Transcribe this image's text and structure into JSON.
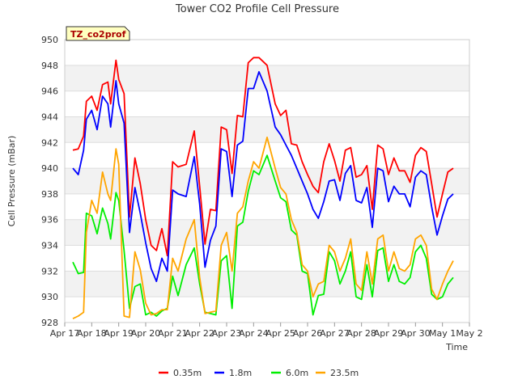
{
  "chart_data": {
    "type": "line",
    "title": "Tower CO2 Profile Cell Pressure",
    "site_tag": "TZ_co2prof",
    "xlabel": "Time",
    "ylabel": "Cell Pressure (mBar)",
    "ylim": [
      928,
      950
    ],
    "xlim": [
      0,
      15
    ],
    "y_ticks": [
      928,
      930,
      932,
      934,
      936,
      938,
      940,
      942,
      944,
      946,
      948,
      950
    ],
    "x_ticks": [
      {
        "x": 0,
        "label": "Apr 17"
      },
      {
        "x": 1,
        "label": "Apr 18"
      },
      {
        "x": 2,
        "label": "Apr 19"
      },
      {
        "x": 3,
        "label": "Apr 20"
      },
      {
        "x": 4,
        "label": "Apr 21"
      },
      {
        "x": 5,
        "label": "Apr 22"
      },
      {
        "x": 6,
        "label": "Apr 23"
      },
      {
        "x": 7,
        "label": "Apr 24"
      },
      {
        "x": 8,
        "label": "Apr 25"
      },
      {
        "x": 9,
        "label": "Apr 26"
      },
      {
        "x": 10,
        "label": "Apr 27"
      },
      {
        "x": 11,
        "label": "Apr 28"
      },
      {
        "x": 12,
        "label": "Apr 29"
      },
      {
        "x": 13,
        "label": "Apr 30"
      },
      {
        "x": 14,
        "label": "May 1"
      },
      {
        "x": 15,
        "label": "May 2"
      }
    ],
    "grid": "horizontal-bands",
    "legend_position": "bottom",
    "series": [
      {
        "name": "0.35m",
        "color": "#ff0000",
        "x": [
          0.3,
          0.5,
          0.7,
          0.8,
          1.0,
          1.2,
          1.4,
          1.6,
          1.7,
          1.9,
          2.0,
          2.2,
          2.4,
          2.6,
          2.8,
          3.0,
          3.2,
          3.4,
          3.6,
          3.8,
          4.0,
          4.2,
          4.5,
          4.8,
          5.0,
          5.2,
          5.4,
          5.6,
          5.8,
          6.0,
          6.2,
          6.4,
          6.6,
          6.8,
          7.0,
          7.2,
          7.5,
          7.8,
          8.0,
          8.2,
          8.4,
          8.6,
          8.8,
          9.0,
          9.2,
          9.4,
          9.6,
          9.8,
          10.0,
          10.2,
          10.4,
          10.6,
          10.8,
          11.0,
          11.2,
          11.4,
          11.6,
          11.8,
          12.0,
          12.2,
          12.4,
          12.6,
          12.8,
          13.0,
          13.2,
          13.4,
          13.6,
          13.8,
          14.0,
          14.2,
          14.4
        ],
        "y": [
          941.4,
          941.5,
          942.5,
          945.2,
          945.6,
          944.5,
          946.5,
          946.7,
          945.0,
          948.4,
          946.9,
          945.8,
          936.2,
          940.8,
          938.8,
          936.0,
          934.0,
          933.6,
          935.3,
          933.2,
          940.5,
          940.1,
          940.3,
          942.9,
          938.6,
          934.1,
          936.8,
          936.7,
          943.2,
          943.0,
          939.6,
          944.1,
          944.0,
          948.2,
          948.6,
          948.6,
          948.0,
          945.0,
          944.1,
          944.5,
          941.9,
          941.8,
          940.5,
          939.5,
          938.6,
          938.1,
          940.5,
          941.9,
          940.6,
          939.0,
          941.4,
          941.6,
          939.3,
          939.5,
          940.2,
          936.8,
          941.8,
          941.5,
          939.5,
          940.8,
          939.8,
          939.8,
          938.9,
          941.0,
          941.6,
          941.3,
          938.8,
          936.2,
          938.0,
          939.7,
          940.0
        ]
      },
      {
        "name": "1.8m",
        "color": "#0000ff",
        "x": [
          0.3,
          0.5,
          0.7,
          0.8,
          1.0,
          1.2,
          1.4,
          1.6,
          1.7,
          1.9,
          2.0,
          2.2,
          2.4,
          2.6,
          2.8,
          3.0,
          3.2,
          3.4,
          3.6,
          3.8,
          4.0,
          4.2,
          4.5,
          4.8,
          5.0,
          5.2,
          5.4,
          5.6,
          5.8,
          6.0,
          6.2,
          6.4,
          6.6,
          6.8,
          7.0,
          7.2,
          7.5,
          7.8,
          8.0,
          8.2,
          8.4,
          8.6,
          8.8,
          9.0,
          9.2,
          9.4,
          9.6,
          9.8,
          10.0,
          10.2,
          10.4,
          10.6,
          10.8,
          11.0,
          11.2,
          11.4,
          11.6,
          11.8,
          12.0,
          12.2,
          12.4,
          12.6,
          12.8,
          13.0,
          13.2,
          13.4,
          13.6,
          13.8,
          14.0,
          14.2,
          14.4
        ],
        "y": [
          940.0,
          939.5,
          941.4,
          943.8,
          944.5,
          943.0,
          945.6,
          945.0,
          943.2,
          946.8,
          945.0,
          943.5,
          935.0,
          938.5,
          936.5,
          934.2,
          932.2,
          931.2,
          933.0,
          932.0,
          938.3,
          938.0,
          937.8,
          940.9,
          937.2,
          932.3,
          934.4,
          935.5,
          941.5,
          941.3,
          937.8,
          941.8,
          942.1,
          946.2,
          946.2,
          947.5,
          946.0,
          943.2,
          942.6,
          941.8,
          941.0,
          940.0,
          939.0,
          938.0,
          936.8,
          936.1,
          937.4,
          939.0,
          939.1,
          937.5,
          939.6,
          940.2,
          937.5,
          937.3,
          938.5,
          935.4,
          940.0,
          939.8,
          937.4,
          938.6,
          938.0,
          938.0,
          937.0,
          939.3,
          939.8,
          939.5,
          937.0,
          934.8,
          936.3,
          937.6,
          938.0
        ]
      },
      {
        "name": "6.0m",
        "color": "#00ee00",
        "x": [
          0.3,
          0.5,
          0.7,
          0.8,
          1.0,
          1.2,
          1.4,
          1.6,
          1.7,
          1.9,
          2.0,
          2.2,
          2.4,
          2.6,
          2.8,
          3.0,
          3.2,
          3.4,
          3.6,
          3.8,
          4.0,
          4.2,
          4.5,
          4.8,
          5.0,
          5.2,
          5.4,
          5.6,
          5.8,
          6.0,
          6.2,
          6.4,
          6.6,
          6.8,
          7.0,
          7.2,
          7.5,
          7.8,
          8.0,
          8.2,
          8.4,
          8.6,
          8.8,
          9.0,
          9.2,
          9.4,
          9.6,
          9.8,
          10.0,
          10.2,
          10.4,
          10.6,
          10.8,
          11.0,
          11.2,
          11.4,
          11.6,
          11.8,
          12.0,
          12.2,
          12.4,
          12.6,
          12.8,
          13.0,
          13.2,
          13.4,
          13.6,
          13.8,
          14.0,
          14.2,
          14.4
        ],
        "y": [
          932.7,
          931.8,
          931.9,
          936.5,
          936.3,
          934.9,
          936.9,
          935.7,
          934.5,
          938.1,
          937.5,
          933.6,
          929.1,
          930.8,
          931.0,
          928.6,
          928.8,
          928.5,
          928.9,
          929.1,
          931.6,
          930.1,
          932.5,
          933.8,
          931.0,
          928.8,
          928.7,
          928.6,
          932.8,
          933.2,
          929.1,
          935.5,
          935.8,
          938.2,
          939.8,
          939.5,
          941.0,
          939.0,
          937.7,
          937.4,
          935.2,
          934.8,
          932.0,
          931.8,
          928.6,
          930.1,
          930.2,
          933.5,
          932.8,
          931.0,
          932.0,
          933.5,
          930.0,
          929.8,
          932.5,
          930.0,
          933.6,
          933.8,
          931.2,
          932.5,
          931.2,
          931.0,
          931.5,
          933.5,
          934.0,
          933.0,
          930.2,
          929.8,
          930.0,
          931.0,
          931.5
        ]
      },
      {
        "name": "23.5m",
        "color": "#ffa500",
        "x": [
          0.3,
          0.5,
          0.7,
          0.8,
          1.0,
          1.2,
          1.4,
          1.6,
          1.7,
          1.9,
          2.0,
          2.2,
          2.4,
          2.6,
          2.8,
          3.0,
          3.2,
          3.4,
          3.6,
          3.8,
          4.0,
          4.2,
          4.5,
          4.8,
          5.0,
          5.2,
          5.4,
          5.6,
          5.8,
          6.0,
          6.2,
          6.4,
          6.6,
          6.8,
          7.0,
          7.2,
          7.5,
          7.8,
          8.0,
          8.2,
          8.4,
          8.6,
          8.8,
          9.0,
          9.2,
          9.4,
          9.6,
          9.8,
          10.0,
          10.2,
          10.4,
          10.6,
          10.8,
          11.0,
          11.2,
          11.4,
          11.6,
          11.8,
          12.0,
          12.2,
          12.4,
          12.6,
          12.8,
          13.0,
          13.2,
          13.4,
          13.6,
          13.8,
          14.0,
          14.2,
          14.4
        ],
        "y": [
          928.3,
          928.5,
          928.8,
          935.0,
          937.5,
          936.5,
          939.7,
          938.0,
          937.5,
          941.5,
          940.3,
          928.5,
          928.4,
          933.5,
          932.1,
          929.5,
          928.6,
          928.7,
          929.0,
          929.0,
          933.0,
          932.0,
          934.5,
          936.0,
          931.5,
          928.7,
          928.8,
          928.9,
          934.0,
          935.0,
          932.0,
          936.5,
          937.0,
          939.0,
          940.5,
          940.0,
          942.4,
          940.0,
          938.5,
          938.0,
          936.0,
          935.0,
          932.5,
          932.0,
          930.0,
          931.0,
          931.2,
          934.0,
          933.5,
          932.0,
          933.0,
          934.5,
          931.0,
          930.5,
          933.5,
          931.0,
          934.5,
          934.8,
          932.0,
          933.5,
          932.2,
          932.0,
          932.5,
          934.5,
          934.8,
          934.0,
          930.6,
          929.8,
          931.0,
          932.0,
          932.8
        ]
      }
    ]
  }
}
